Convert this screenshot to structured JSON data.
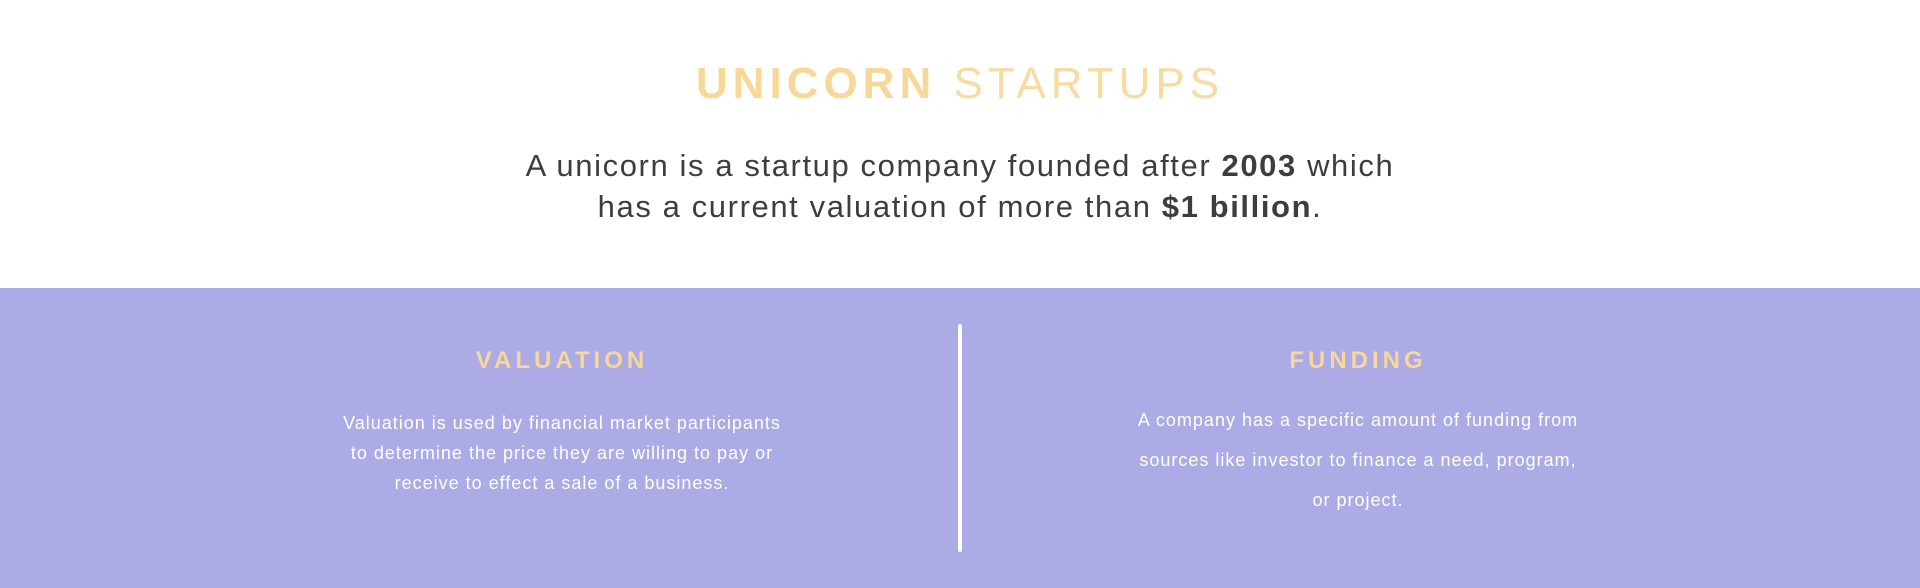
{
  "header": {
    "title_strong": "UNICORN",
    "title_light": "STARTUPS",
    "intro": {
      "part1": "A unicorn is a startup company founded after ",
      "year": "2003",
      "part2": " which",
      "part3": "has a current valuation of more than ",
      "amount": "$1 billion",
      "part4": "."
    }
  },
  "sections": {
    "valuation": {
      "heading": "VALUATION",
      "lines": [
        "Valuation is used by financial market participants",
        "to determine the price they are willing to pay or",
        "receive to effect a sale of a business."
      ]
    },
    "funding": {
      "heading": "FUNDING",
      "lines": [
        "A company has a specific amount of funding from",
        "sources like investor to finance a need, program,",
        "or project."
      ]
    }
  },
  "colors": {
    "accent": "#f7d898",
    "band": "#acabe5",
    "text_dark": "#3d3d3d",
    "text_light": "#ffffff"
  }
}
